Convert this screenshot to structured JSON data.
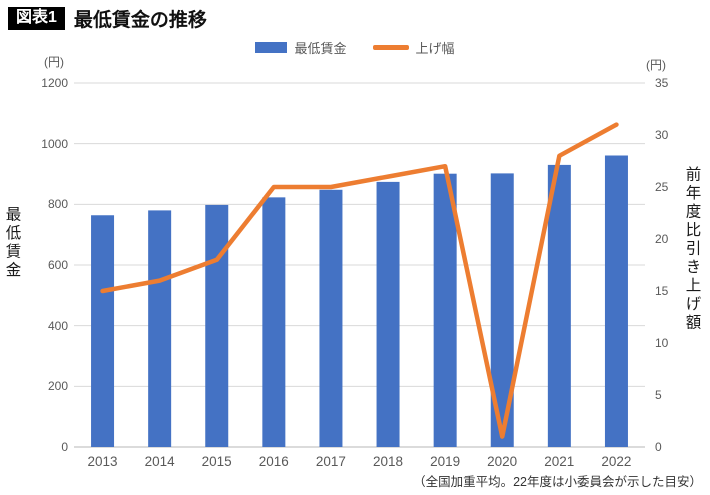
{
  "header": {
    "badge": "図表1",
    "title": "最低賃金の推移"
  },
  "legend": {
    "items": [
      {
        "label": "最低賃金",
        "swatch": "bar",
        "color": "#4472C4"
      },
      {
        "label": "上げ幅",
        "swatch": "line",
        "color": "#ED7D31"
      }
    ]
  },
  "left_axis": {
    "unit": "(円)",
    "title": "最低賃金",
    "ticks": [
      1200,
      1000,
      800,
      600,
      400,
      200,
      0
    ]
  },
  "right_axis": {
    "unit": "(円)",
    "title": "前年度比引き上げ額",
    "ticks": [
      35,
      30,
      25,
      20,
      15,
      10,
      5,
      0
    ]
  },
  "footnote": "（全国加重平均。22年度は小委員会が示した目安）",
  "chart_data": {
    "type": "bar",
    "categories": [
      "2013",
      "2014",
      "2015",
      "2016",
      "2017",
      "2018",
      "2019",
      "2020",
      "2021",
      "2022"
    ],
    "series": [
      {
        "name": "最低賃金",
        "type": "bar",
        "axis": "left",
        "color": "#4472C4",
        "values": [
          764,
          780,
          798,
          823,
          848,
          874,
          901,
          902,
          930,
          961
        ]
      },
      {
        "name": "上げ幅",
        "type": "line",
        "axis": "right",
        "color": "#ED7D31",
        "values": [
          15,
          16,
          18,
          25,
          25,
          26,
          27,
          1,
          28,
          31
        ]
      }
    ],
    "left_ylim": [
      0,
      1200
    ],
    "right_ylim": [
      0,
      35
    ],
    "grid": true,
    "legend_position": "top",
    "title": "最低賃金の推移"
  },
  "colors": {
    "bar": "#4472C4",
    "line": "#ED7D31",
    "grid": "#d9d9d9",
    "axis_line": "#b7b7b7",
    "tick_text": "#595959"
  }
}
